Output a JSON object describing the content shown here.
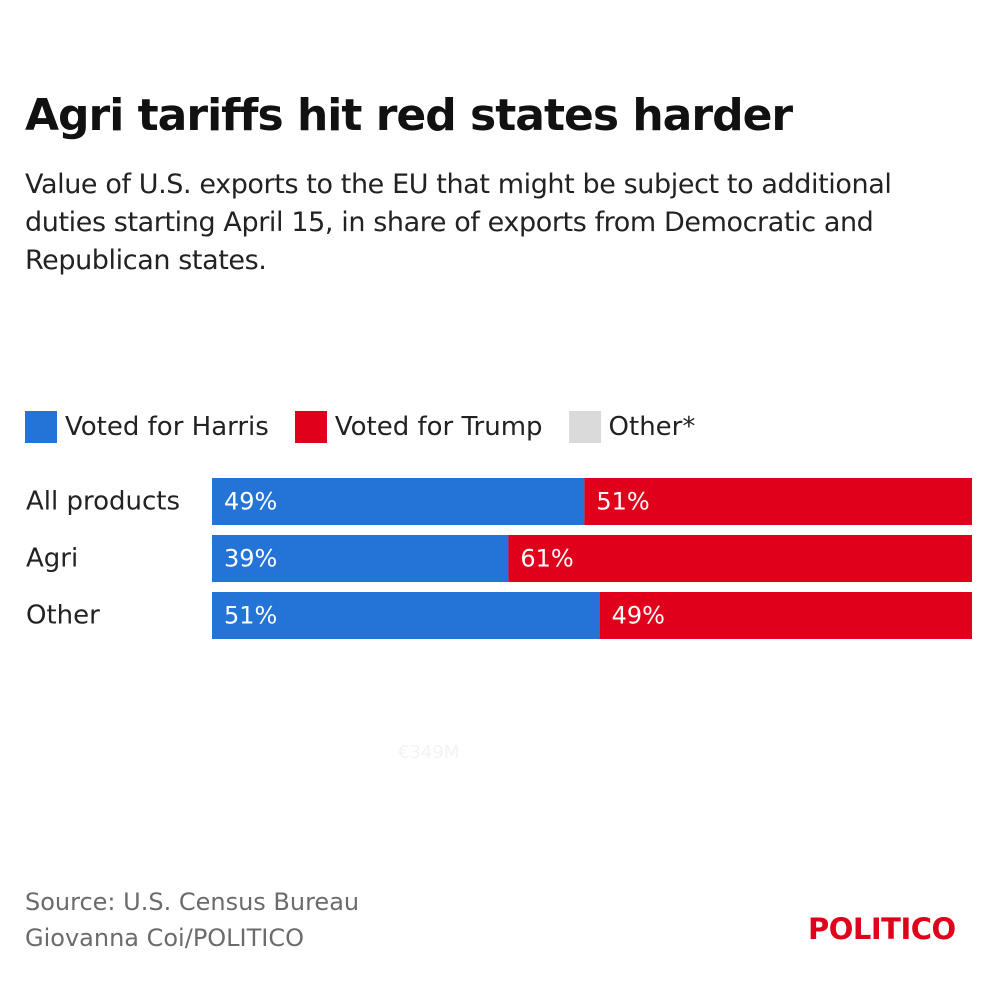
{
  "title": "Agri tariffs hit red states harder",
  "subtitle": "Value of U.S. exports to the EU that might be subject to additional duties starting April 15, in share of exports from Democratic and Republican states.",
  "legend": [
    {
      "label": "Voted for Harris",
      "color": "#2473d6"
    },
    {
      "label": "Voted for Trump",
      "color": "#e0001b"
    },
    {
      "label": "Other*",
      "color": "#dadada"
    }
  ],
  "chart_data": {
    "type": "bar",
    "orientation": "horizontal",
    "stacked": true,
    "unit": "%",
    "xlim": [
      0,
      100
    ],
    "categories": [
      "All products",
      "Agri",
      "Other"
    ],
    "series": [
      {
        "name": "Voted for Harris",
        "color": "#2473d6",
        "values": [
          49,
          39,
          51
        ]
      },
      {
        "name": "Voted for Trump",
        "color": "#e0001b",
        "values": [
          51,
          61,
          49
        ]
      }
    ],
    "data_labels": [
      [
        "49%",
        "51%"
      ],
      [
        "39%",
        "61%"
      ],
      [
        "51%",
        "49%"
      ]
    ]
  },
  "ghost_label": "€349M",
  "source": {
    "line1": "Source: U.S. Census Bureau",
    "line2": "Giovanna Coi/POLITICO"
  },
  "logo": "POLITICO"
}
